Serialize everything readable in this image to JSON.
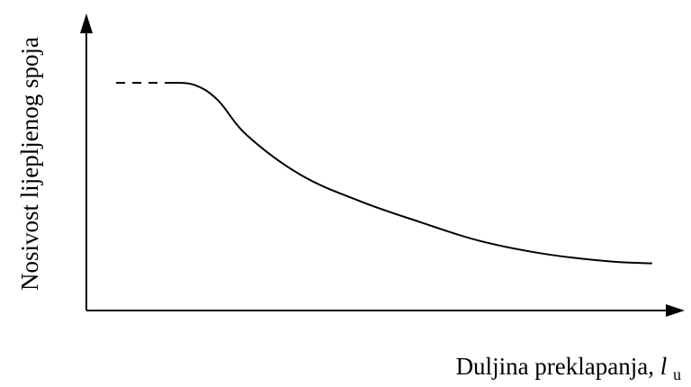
{
  "chart_data": {
    "type": "line",
    "title": "",
    "xlabel": "Duljina preklapanja, ",
    "xlabel_symbol": "l",
    "xlabel_subscript": "u",
    "ylabel": "Nosivost lijepljenog spoja",
    "xlim": [
      0,
      100
    ],
    "ylim": [
      0,
      100
    ],
    "grid": false,
    "legend": "none",
    "arrows": true,
    "series": [
      {
        "style": "dashed",
        "x": [
          5,
          14
        ],
        "y": [
          100,
          100
        ]
      },
      {
        "style": "solid",
        "x": [
          14,
          18,
          22,
          27,
          36,
          46,
          56,
          66,
          77,
          88,
          95
        ],
        "y": [
          100,
          99,
          91,
          72,
          51,
          37,
          26,
          16,
          9,
          5,
          4
        ]
      }
    ]
  }
}
